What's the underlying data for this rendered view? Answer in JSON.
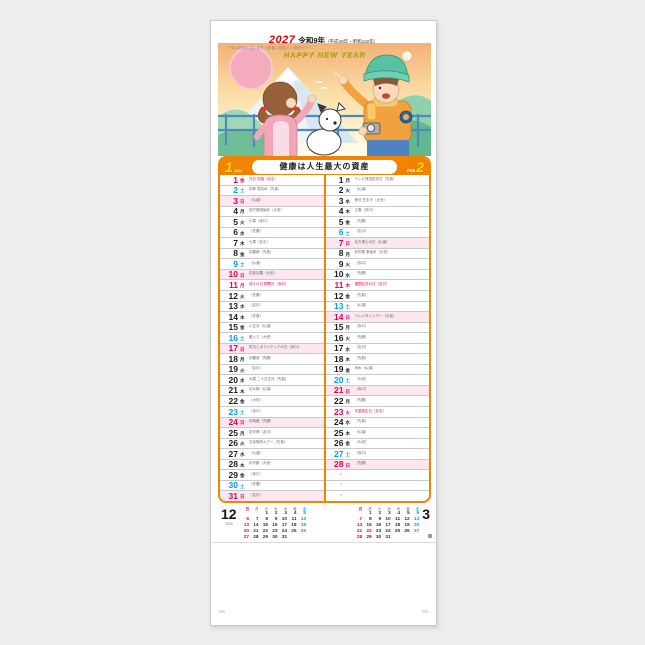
{
  "colors": {
    "orange": "#f08300",
    "sunday_red": "#e50051",
    "saturday_blue": "#00a0e9",
    "sunday_band_pink": "#fce6f0",
    "month_number_yellow": "#ffe100",
    "year_red": "#e60012"
  },
  "header": {
    "year": "2027",
    "era": "令和9年",
    "era_note": "（平成39年・昭和102年）",
    "product_code": "NK-183"
  },
  "illustration": {
    "caption": "一年の計は元旦にあり（新春に相応しい図案です）",
    "greeting": "HAPPY NEW YEAR"
  },
  "banner": {
    "left_month_num": "1",
    "left_month_abbr": "JAN",
    "slogan": "健康は人生最大の資産",
    "right_month_num": "2",
    "right_month_abbr": "FEB"
  },
  "weekday_headers": [
    "日",
    "月",
    "火",
    "水",
    "木",
    "金",
    "土"
  ],
  "months": [
    {
      "key": "jan",
      "label": "1月",
      "days": [
        {
          "d": "1",
          "w": "金",
          "c": "hol",
          "note": "元日 初詣（友引）",
          "nr": true
        },
        {
          "d": "2",
          "w": "土",
          "c": "sat",
          "note": "初夢 書初め（先負）"
        },
        {
          "d": "3",
          "w": "日",
          "c": "sun",
          "note": "（仏滅）"
        },
        {
          "d": "4",
          "w": "月",
          "c": "wk",
          "note": "官庁御用始め（大安）"
        },
        {
          "d": "5",
          "w": "火",
          "c": "wk",
          "note": "小寒（赤口）"
        },
        {
          "d": "6",
          "w": "水",
          "c": "wk",
          "note": "（先勝）"
        },
        {
          "d": "7",
          "w": "木",
          "c": "wk",
          "note": "七草（友引）"
        },
        {
          "d": "8",
          "w": "金",
          "c": "wk",
          "note": "初薬師（先負）"
        },
        {
          "d": "9",
          "w": "土",
          "c": "sat",
          "note": "（仏滅）"
        },
        {
          "d": "10",
          "w": "日",
          "c": "sun",
          "note": "初金比羅（大安）"
        },
        {
          "d": "11",
          "w": "月",
          "c": "hol",
          "note": "成人の日 鏡開き（赤口）",
          "nr": true
        },
        {
          "d": "12",
          "w": "火",
          "c": "wk",
          "note": "（先勝）"
        },
        {
          "d": "13",
          "w": "水",
          "c": "wk",
          "note": "（友引）"
        },
        {
          "d": "14",
          "w": "木",
          "c": "wk",
          "note": "（先負）"
        },
        {
          "d": "15",
          "w": "金",
          "c": "wk",
          "note": "小正月（仏滅）"
        },
        {
          "d": "16",
          "w": "土",
          "c": "sat",
          "note": "藪入り（大安）"
        },
        {
          "d": "17",
          "w": "日",
          "c": "sun",
          "note": "防災とボランティアの日（赤口）"
        },
        {
          "d": "18",
          "w": "月",
          "c": "wk",
          "note": "初観音（先勝）"
        },
        {
          "d": "19",
          "w": "火",
          "c": "wk",
          "note": "（友引）"
        },
        {
          "d": "20",
          "w": "水",
          "c": "wk",
          "note": "大寒 二十日正月（先負）"
        },
        {
          "d": "21",
          "w": "木",
          "c": "wk",
          "note": "初大師（仏滅）"
        },
        {
          "d": "22",
          "w": "金",
          "c": "wk",
          "note": "（大安）"
        },
        {
          "d": "23",
          "w": "土",
          "c": "sat",
          "note": "（赤口）"
        },
        {
          "d": "24",
          "w": "日",
          "c": "sun",
          "note": "初地蔵（先勝）"
        },
        {
          "d": "25",
          "w": "月",
          "c": "wk",
          "note": "初天神（友引）"
        },
        {
          "d": "26",
          "w": "火",
          "c": "wk",
          "note": "文化財防火デー（先負）"
        },
        {
          "d": "27",
          "w": "水",
          "c": "wk",
          "note": "（仏滅）"
        },
        {
          "d": "28",
          "w": "木",
          "c": "wk",
          "note": "初不動（大安）"
        },
        {
          "d": "29",
          "w": "金",
          "c": "wk",
          "note": "（赤口）"
        },
        {
          "d": "30",
          "w": "土",
          "c": "sat",
          "note": "（先勝）"
        },
        {
          "d": "31",
          "w": "日",
          "c": "sun",
          "note": "（友引）"
        }
      ],
      "fillers": []
    },
    {
      "key": "feb",
      "label": "2月",
      "days": [
        {
          "d": "1",
          "w": "月",
          "c": "wk",
          "note": "テレビ放送記念日（先負）"
        },
        {
          "d": "2",
          "w": "火",
          "c": "wk",
          "note": "（仏滅）"
        },
        {
          "d": "3",
          "w": "水",
          "c": "wk",
          "note": "節分 豆まき（大安）"
        },
        {
          "d": "4",
          "w": "木",
          "c": "wk",
          "note": "立春（赤口）"
        },
        {
          "d": "5",
          "w": "金",
          "c": "wk",
          "note": "（先勝）"
        },
        {
          "d": "6",
          "w": "土",
          "c": "sat",
          "note": "（友引）"
        },
        {
          "d": "7",
          "w": "日",
          "c": "sun",
          "note": "北方領土の日（仏滅）"
        },
        {
          "d": "8",
          "w": "月",
          "c": "wk",
          "note": "針供養 事始め（大安）"
        },
        {
          "d": "9",
          "w": "火",
          "c": "wk",
          "note": "（赤口）"
        },
        {
          "d": "10",
          "w": "水",
          "c": "wk",
          "note": "（先勝）"
        },
        {
          "d": "11",
          "w": "木",
          "c": "hol",
          "note": "建国記念の日（友引）",
          "nr": true
        },
        {
          "d": "12",
          "w": "金",
          "c": "wk",
          "note": "（先負）"
        },
        {
          "d": "13",
          "w": "土",
          "c": "sat",
          "note": "（仏滅）"
        },
        {
          "d": "14",
          "w": "日",
          "c": "sun",
          "note": "バレンタインデー（大安）"
        },
        {
          "d": "15",
          "w": "月",
          "c": "wk",
          "note": "（赤口）"
        },
        {
          "d": "16",
          "w": "火",
          "c": "wk",
          "note": "（先勝）"
        },
        {
          "d": "17",
          "w": "水",
          "c": "wk",
          "note": "（友引）"
        },
        {
          "d": "18",
          "w": "木",
          "c": "wk",
          "note": "（先負）"
        },
        {
          "d": "19",
          "w": "金",
          "c": "wk",
          "note": "雨水（仏滅）"
        },
        {
          "d": "20",
          "w": "土",
          "c": "sat",
          "note": "（大安）"
        },
        {
          "d": "21",
          "w": "日",
          "c": "sun",
          "note": "（赤口）"
        },
        {
          "d": "22",
          "w": "月",
          "c": "wk",
          "note": "（先勝）"
        },
        {
          "d": "23",
          "w": "火",
          "c": "hol",
          "note": "天皇誕生日（友引）",
          "nr": true
        },
        {
          "d": "24",
          "w": "水",
          "c": "wk",
          "note": "（先負）"
        },
        {
          "d": "25",
          "w": "木",
          "c": "wk",
          "note": "（仏滅）"
        },
        {
          "d": "26",
          "w": "金",
          "c": "wk",
          "note": "（大安）"
        },
        {
          "d": "27",
          "w": "土",
          "c": "sat",
          "note": "（赤口）"
        },
        {
          "d": "28",
          "w": "日",
          "c": "sun",
          "note": "（先勝）"
        }
      ],
      "fillers": [
        "・",
        "・",
        "・"
      ]
    }
  ],
  "mini_calendars": [
    {
      "key": "december",
      "month_label": "12",
      "year_label": "2026",
      "red_days": [],
      "weeks": [
        [
          "",
          "",
          "1",
          "2",
          "3",
          "4",
          "5"
        ],
        [
          "6",
          "7",
          "8",
          "9",
          "10",
          "11",
          "12"
        ],
        [
          "13",
          "14",
          "15",
          "16",
          "17",
          "18",
          "19"
        ],
        [
          "20",
          "21",
          "22",
          "23",
          "24",
          "25",
          "26"
        ],
        [
          "27",
          "28",
          "29",
          "30",
          "31",
          "",
          ""
        ]
      ]
    },
    {
      "key": "march",
      "month_label": "3",
      "year_label": "",
      "red_days": [
        "22"
      ],
      "weeks": [
        [
          "",
          "1",
          "2",
          "3",
          "4",
          "5",
          "6"
        ],
        [
          "7",
          "8",
          "9",
          "10",
          "11",
          "12",
          "13"
        ],
        [
          "14",
          "15",
          "16",
          "17",
          "18",
          "19",
          "20"
        ],
        [
          "21",
          "22",
          "23",
          "24",
          "25",
          "26",
          "27"
        ],
        [
          "28",
          "29",
          "30",
          "31",
          "",
          "",
          ""
        ]
      ]
    }
  ]
}
